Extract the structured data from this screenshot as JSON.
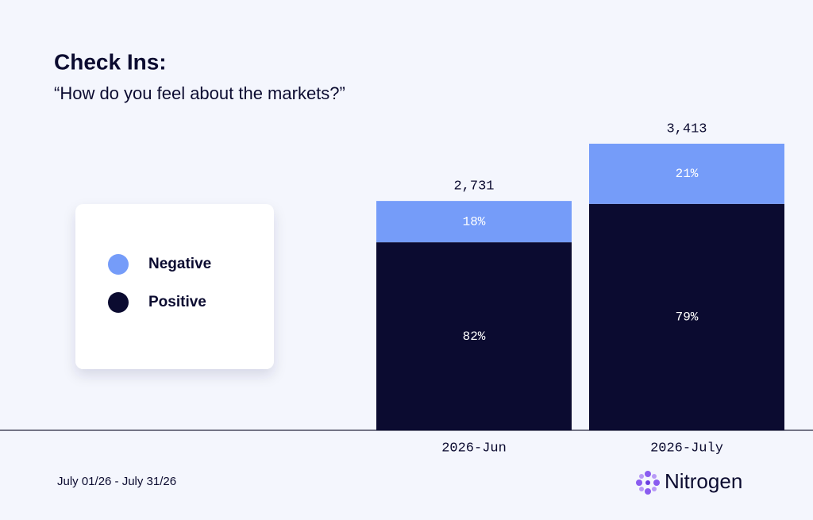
{
  "chart_data": {
    "type": "stacked_bar",
    "title": "Check Ins:",
    "subtitle": "“How do you feel about the markets?”",
    "categories": [
      "2026-Jun",
      "2026-July"
    ],
    "series": [
      {
        "name": "Negative",
        "color": "#759cf9",
        "values": [
          18,
          21
        ],
        "value_labels": [
          "18%",
          "21%"
        ]
      },
      {
        "name": "Positive",
        "color": "#0b0b30",
        "values": [
          82,
          79
        ],
        "value_labels": [
          "82%",
          "79%"
        ]
      }
    ],
    "totals": {
      "values": [
        2731,
        3413
      ],
      "value_labels": [
        "2,731",
        "3,413"
      ]
    },
    "footer": "July 01/26 - July 31/26",
    "brand": "Nitrogen"
  }
}
